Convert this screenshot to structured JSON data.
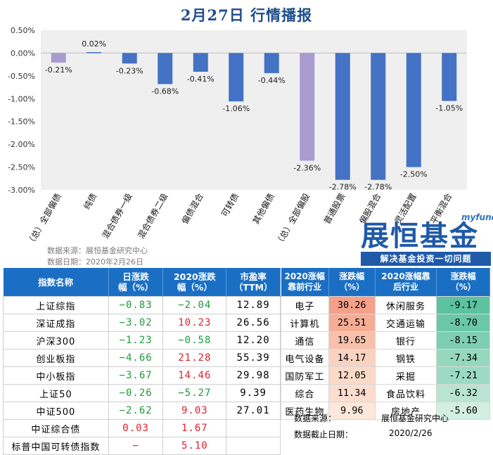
{
  "chart_data": {
    "type": "bar",
    "title": "2月27日  行情播报",
    "categories": [
      "（总）全部偏债",
      "纯债",
      "混合债券一级",
      "混合债券二级",
      "偏债混合",
      "可转债",
      "其他偏债",
      "（总）全部偏股",
      "普通股票",
      "偏股混合",
      "灵活配置",
      "平衡混合"
    ],
    "values": [
      -0.21,
      0.02,
      -0.23,
      -0.68,
      -0.41,
      -1.06,
      -0.44,
      -2.36,
      -2.78,
      -2.78,
      -2.5,
      -1.05
    ],
    "value_labels": [
      "-0.21%",
      "0.02%",
      "-0.23%",
      "-0.68%",
      "-0.41%",
      "-1.06%",
      "-0.44%",
      "-2.36%",
      "-2.78%",
      "-2.78%",
      "-2.50%",
      "-1.05%"
    ],
    "highlight_indices": [
      0,
      7
    ],
    "ylim": [
      -3.0,
      0.5
    ],
    "yticks": [
      0.5,
      0.0,
      -0.5,
      -1.0,
      -1.5,
      -2.0,
      -2.5,
      -3.0
    ],
    "ytick_labels": [
      "0.50%",
      "0.00%",
      "-0.50%",
      "-1.00%",
      "-1.50%",
      "-2.00%",
      "-2.50%",
      "-3.00%"
    ],
    "colors": {
      "bar": "#4472c4",
      "highlight": "#a99bd0",
      "plot_bg": "#efefef"
    },
    "grid": false,
    "xlabel": "",
    "ylabel": ""
  },
  "source": {
    "line1": "数据来源：展恒基金研究中心",
    "line2": "数据日期：2020年2月26日"
  },
  "logo": {
    "sub": "myfund",
    "main": "展恒基金",
    "slogan": "解决基金投资一切问题"
  },
  "index_table": {
    "headers": [
      "指数名称",
      "日涨跌\n幅（%）",
      "2020涨跌\n幅（%）",
      "市盈率\n（TTM）"
    ],
    "rows": [
      {
        "name": "上证综指",
        "day": "−0.83",
        "ytd": "−2.04",
        "pe": "12.89",
        "day_color": "green",
        "ytd_color": "green"
      },
      {
        "name": "深证成指",
        "day": "−3.02",
        "ytd": "10.23",
        "pe": "26.56",
        "day_color": "green",
        "ytd_color": "red"
      },
      {
        "name": "沪深300",
        "day": "−1.23",
        "ytd": "−0.58",
        "pe": "12.20",
        "day_color": "green",
        "ytd_color": "green"
      },
      {
        "name": "创业板指",
        "day": "−4.66",
        "ytd": "21.28",
        "pe": "55.39",
        "day_color": "green",
        "ytd_color": "red"
      },
      {
        "name": "中小板指",
        "day": "−3.67",
        "ytd": "14.46",
        "pe": "29.98",
        "day_color": "green",
        "ytd_color": "red"
      },
      {
        "name": "上证50",
        "day": "−0.26",
        "ytd": "−5.27",
        "pe": "9.39",
        "day_color": "green",
        "ytd_color": "green"
      },
      {
        "name": "中证500",
        "day": "−2.62",
        "ytd": "9.03",
        "pe": "27.01",
        "day_color": "green",
        "ytd_color": "red"
      },
      {
        "name": "中证综合债",
        "day": "0.03",
        "ytd": "1.67",
        "pe": "",
        "day_color": "red",
        "ytd_color": "red"
      },
      {
        "name": "标普中国可转债指数",
        "day": "−",
        "ytd": "5.10",
        "pe": "",
        "day_color": "red",
        "ytd_color": "red"
      }
    ]
  },
  "industry_table": {
    "headers": [
      "2020涨幅\n靠前行业",
      "涨跌幅\n（%）",
      "2020涨幅靠\n后行业",
      "涨跌幅\n（%）"
    ],
    "rows": [
      {
        "top": "电子",
        "top_chg": "30.26",
        "top_bg": "#f5a08a",
        "bottom": "休闲服务",
        "bottom_chg": "-9.17",
        "bottom_bg": "#5cc2a0"
      },
      {
        "top": "计算机",
        "top_chg": "25.51",
        "top_bg": "#f6ad95",
        "bottom": "交通运输",
        "bottom_chg": "-8.70",
        "bottom_bg": "#6ac7a8"
      },
      {
        "top": "通信",
        "top_chg": "19.65",
        "top_bg": "#f8c0ab",
        "bottom": "银行",
        "bottom_chg": "-8.15",
        "bottom_bg": "#7dceb3"
      },
      {
        "top": "电气设备",
        "top_chg": "14.17",
        "top_bg": "#fad2c2",
        "bottom": "钢铁",
        "bottom_chg": "-7.34",
        "bottom_bg": "#96d7c0"
      },
      {
        "top": "国防军工",
        "top_chg": "12.05",
        "top_bg": "#fbdaca",
        "bottom": "采掘",
        "bottom_chg": "-7.21",
        "bottom_bg": "#9dd9c4"
      },
      {
        "top": "综合",
        "top_chg": "11.34",
        "top_bg": "#fcdecf",
        "bottom": "食品饮料",
        "bottom_chg": "-6.32",
        "bottom_bg": "#b9e3d3"
      },
      {
        "top": "医药生物",
        "top_chg": "9.96",
        "top_bg": "#fde7db",
        "bottom": "房地产",
        "bottom_chg": "-5.60",
        "bottom_bg": "#d3eee3"
      }
    ],
    "footer_label1": "数据来源：",
    "footer_value1": "展恒基金研究中心",
    "footer_label2": "数据截止日期：",
    "footer_value2": "2020/2/26"
  }
}
